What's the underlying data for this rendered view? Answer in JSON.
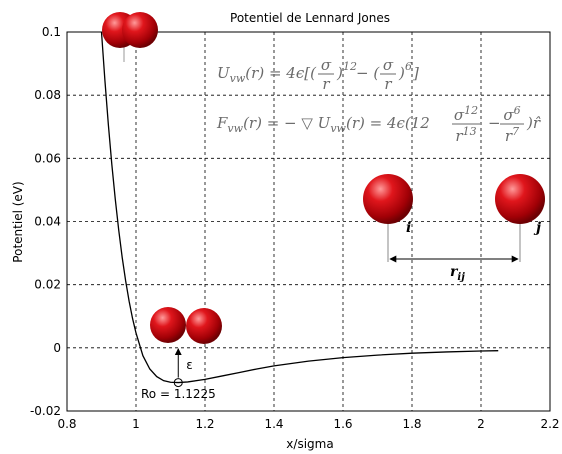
{
  "chart_data": {
    "type": "line",
    "title": "Potentiel de Lennard Jones",
    "xlabel": "x/sigma",
    "ylabel": "Potentiel (eV)",
    "xlim": [
      0.8,
      2.2
    ],
    "ylim": [
      -0.02,
      0.1
    ],
    "xticks": [
      "0.8",
      "1",
      "1.2",
      "1.4",
      "1.6",
      "1.8",
      "2",
      "2.2"
    ],
    "yticks": [
      "-0.02",
      "0",
      "0.02",
      "0.04",
      "0.06",
      "0.08",
      "0.1"
    ],
    "grid": true,
    "series": [
      {
        "x": [
          0.9,
          0.91,
          0.92,
          0.93,
          0.94,
          0.95,
          0.96,
          0.97,
          0.98,
          0.99,
          1.0,
          1.02,
          1.04,
          1.06,
          1.08,
          1.1,
          1.1225,
          1.15,
          1.2,
          1.25,
          1.3,
          1.35,
          1.4,
          1.5,
          1.6,
          1.7,
          1.8,
          1.9,
          2.0,
          2.05
        ],
        "y": [
          0.1,
          0.0845,
          0.0705,
          0.058,
          0.047,
          0.0372,
          0.0286,
          0.0212,
          0.0148,
          0.0093,
          0.0047,
          -0.0025,
          -0.0067,
          -0.0091,
          -0.0104,
          -0.0109,
          -0.011,
          -0.0108,
          -0.01,
          -0.0089,
          -0.0078,
          -0.0067,
          -0.0057,
          -0.0042,
          -0.0031,
          -0.0023,
          -0.0017,
          -0.0013,
          -0.001,
          -0.0009
        ]
      }
    ],
    "annotations": {
      "minimum_label": "Ro = 1.1225",
      "minimum_x": 1.1225,
      "minimum_y": -0.011,
      "epsilon_label": "ε",
      "equation_u": "U_vw(r) = 4ε[(σ/r)^12 − (σ/r)^6]",
      "equation_f": "F_vw(r) = −▽U_vw(r) = 4ε(12 σ^12/r^13 − σ^6/r^7) r̂",
      "atom_i_label": "i",
      "atom_j_label": "j",
      "distance_label": "r_ij"
    }
  },
  "eq": {
    "u_lhs": "U",
    "u_sub": "vw",
    "u_arg": "(r) = 4ϵ[(",
    "sigma": "σ",
    "r": "r",
    "u_mid": ")",
    "exp12": "12",
    "minus": " − (",
    "exp6": "6",
    "u_end": "]",
    "f_lhs": "F",
    "f_sub": "vw",
    "f_mid": "(r) = − ▽ U",
    "f_mid2": "(r) = 4ϵ(12",
    "sigma12": "σ",
    "r13": "r",
    "exp13": "13",
    "f_minus": "−",
    "sigma6": "σ",
    "r7": "r",
    "exp7": "7",
    "f_end": ")r̂"
  }
}
